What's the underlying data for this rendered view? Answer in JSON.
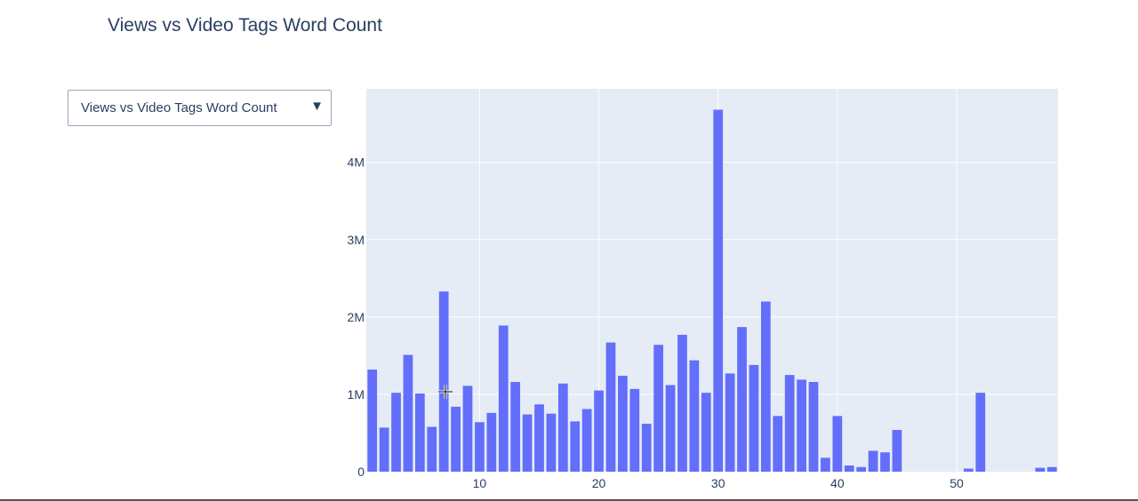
{
  "title": "Views vs Video Tags Word Count",
  "dropdown": {
    "selected": "Views vs Video Tags Word Count",
    "arrow_icon": "triangle-down-icon"
  },
  "colors": {
    "plot_background": "#e5ecf6",
    "bar": "#636efa",
    "text": "#2a3f5f",
    "grid": "#ffffff"
  },
  "chart_data": {
    "type": "bar",
    "title": "Views vs Video Tags Word Count",
    "xlabel": "",
    "ylabel": "",
    "xlim": [
      0.5,
      58.5
    ],
    "ylim": [
      0,
      4950000
    ],
    "grid": true,
    "x_ticks": [
      10,
      20,
      30,
      40,
      50
    ],
    "x_tick_labels": [
      "10",
      "20",
      "30",
      "40",
      "50"
    ],
    "y_ticks": [
      0,
      1000000,
      2000000,
      3000000,
      4000000
    ],
    "y_tick_labels": [
      "0",
      "1M",
      "2M",
      "3M",
      "4M"
    ],
    "x": [
      1,
      2,
      3,
      4,
      5,
      6,
      7,
      8,
      9,
      10,
      11,
      12,
      13,
      14,
      15,
      16,
      17,
      18,
      19,
      20,
      21,
      22,
      23,
      24,
      25,
      26,
      27,
      28,
      29,
      30,
      31,
      32,
      33,
      34,
      35,
      36,
      37,
      38,
      39,
      40,
      41,
      42,
      43,
      44,
      45,
      51,
      52,
      57,
      58
    ],
    "values": [
      1320000,
      570000,
      1020000,
      1510000,
      1010000,
      580000,
      2330000,
      840000,
      1110000,
      640000,
      760000,
      1890000,
      1160000,
      740000,
      870000,
      750000,
      1140000,
      650000,
      810000,
      1050000,
      1670000,
      1240000,
      1070000,
      620000,
      1640000,
      1120000,
      1770000,
      1440000,
      1020000,
      4680000,
      1270000,
      1870000,
      1380000,
      2200000,
      720000,
      1250000,
      1190000,
      1160000,
      180000,
      720000,
      80000,
      60000,
      270000,
      250000,
      540000,
      40000,
      1020000,
      50000,
      60000
    ]
  }
}
